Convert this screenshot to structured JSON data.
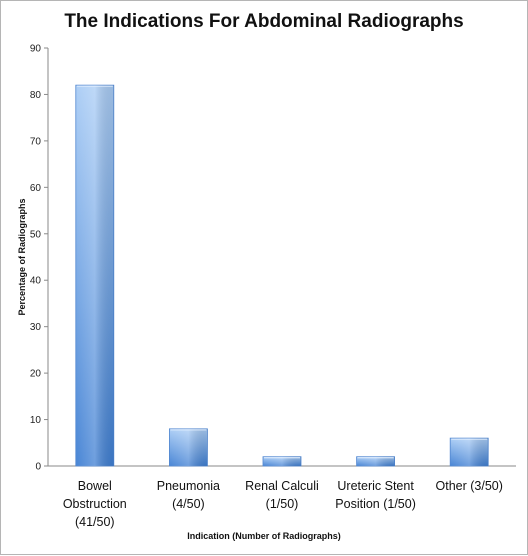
{
  "chart_data": {
    "type": "bar",
    "title": "The Indications For Abdominal Radiographs",
    "xlabel": "Indication (Number of Radiographs)",
    "ylabel": "Percentage of Radiographs",
    "ylim": [
      0,
      90
    ],
    "yticks": [
      "0",
      "10",
      "20",
      "30",
      "40",
      "50",
      "60",
      "70",
      "80",
      "90"
    ],
    "categories": [
      [
        "Bowel",
        "Obstruction",
        "(41/50)"
      ],
      [
        "Pneumonia",
        "(4/50)"
      ],
      [
        "Renal Calculi",
        "(1/50)"
      ],
      [
        "Ureteric Stent",
        "Position (1/50)"
      ],
      [
        "Other (3/50)"
      ]
    ],
    "values": [
      82,
      8,
      2,
      2,
      6
    ],
    "grid": false,
    "bar_color": "#5b95de"
  }
}
